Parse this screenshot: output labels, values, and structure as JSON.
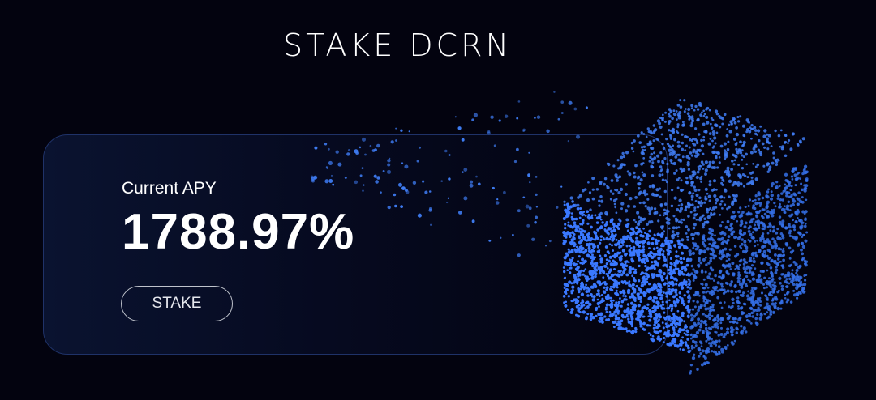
{
  "header": {
    "title": "STAKE DCRN"
  },
  "card": {
    "label": "Current APY",
    "value": "1788.97%",
    "button": "STAKE"
  }
}
